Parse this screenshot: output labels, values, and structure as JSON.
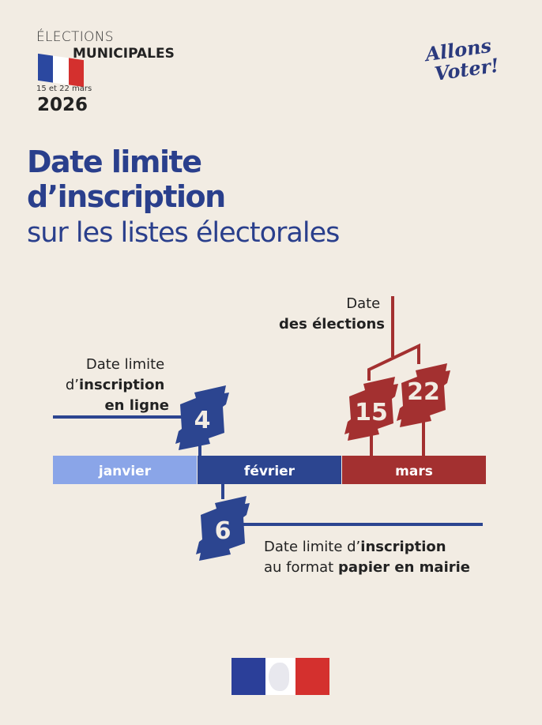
{
  "header": {
    "line1": "ÉLECTIONS",
    "line2": "MUNICIPALES",
    "dates": "15 et 22 mars",
    "year": "2026",
    "slogan_line1": "Allons",
    "slogan_line2": "Voter!"
  },
  "title": {
    "bold_line1": "Date limite",
    "bold_line2": "d’inscription",
    "light_line": "sur les listes électorales"
  },
  "timeline": {
    "months": [
      "janvier",
      "février",
      "mars"
    ],
    "online": {
      "day": "4",
      "label1": "Date limite",
      "label2_prefix": "d’",
      "label2_bold": "inscription",
      "label3": "en ligne"
    },
    "paper": {
      "day": "6",
      "label1_prefix": "Date limite d’",
      "label1_bold": "inscription",
      "label2_prefix": "au format ",
      "label2_bold": "papier en mairie"
    },
    "election": {
      "days": [
        "15",
        "22"
      ],
      "label1": "Date",
      "label2": "des élections"
    }
  },
  "colors": {
    "background": "#f2ece3",
    "blue": "#2a3f8c",
    "light_blue": "#8aa5e8",
    "red": "#a33030"
  }
}
